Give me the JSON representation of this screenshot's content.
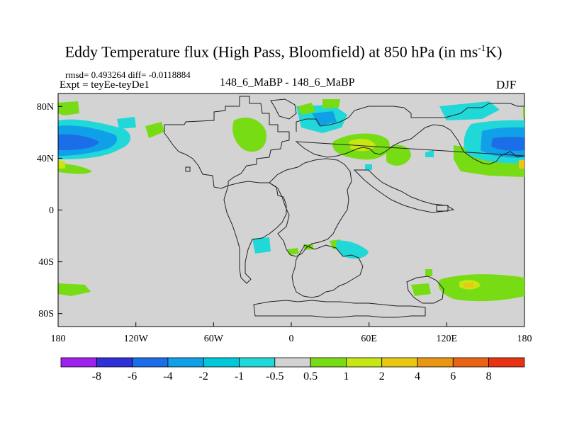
{
  "title": {
    "main": "Eddy Temperature flux (High Pass, Bloomfield) at 850 hPa (in ms",
    "sup": "-1",
    "end": "K)"
  },
  "subtitle_stats": "rmsd= 0.493264 diff= -0.0118884",
  "subtitle_expt": "Expt = teyEe-teyDe1",
  "subtitle_center": "148_6_MaBP - 148_6_MaBP",
  "season": "DJF",
  "colors": {
    "land_background": "#d3d3d3",
    "coast": "#222222"
  },
  "chart_data": {
    "type": "map-contour",
    "x_ticks": [
      "180",
      "120W",
      "60W",
      "0",
      "60E",
      "120E",
      "180"
    ],
    "y_ticks": [
      "80N",
      "40N",
      "0",
      "40S",
      "80S"
    ],
    "lon_range": [
      -180,
      180
    ],
    "lat_range": [
      -90,
      90
    ],
    "colorbar": {
      "labels": [
        "-8",
        "-6",
        "-4",
        "-2",
        "-1",
        "-0.5",
        "0.5",
        "1",
        "2",
        "4",
        "6",
        "8"
      ],
      "colors": [
        "#a020f0",
        "#3030d8",
        "#1c6ee8",
        "#10a0e8",
        "#00c8d8",
        "#20d8d8",
        "#d3d3d3",
        "#78dc14",
        "#c8e614",
        "#e8c814",
        "#e89614",
        "#e86414",
        "#e83214"
      ]
    },
    "features": [
      {
        "lon_range": [
          -180,
          -140
        ],
        "lat_range": [
          38,
          62
        ],
        "level": "-4"
      },
      {
        "lon_range": [
          140,
          180
        ],
        "lat_range": [
          38,
          62
        ],
        "level": "-4"
      },
      {
        "lon_range": [
          0,
          30
        ],
        "lat_range": [
          60,
          75
        ],
        "level": "-1"
      },
      {
        "lon_range": [
          30,
          70
        ],
        "lat_range": [
          35,
          55
        ],
        "level": "2"
      },
      {
        "lon_range": [
          30,
          60
        ],
        "lat_range": [
          -35,
          -25
        ],
        "level": "-1"
      },
      {
        "lon_range": [
          120,
          180
        ],
        "lat_range": [
          -65,
          -45
        ],
        "level": "2"
      }
    ]
  }
}
